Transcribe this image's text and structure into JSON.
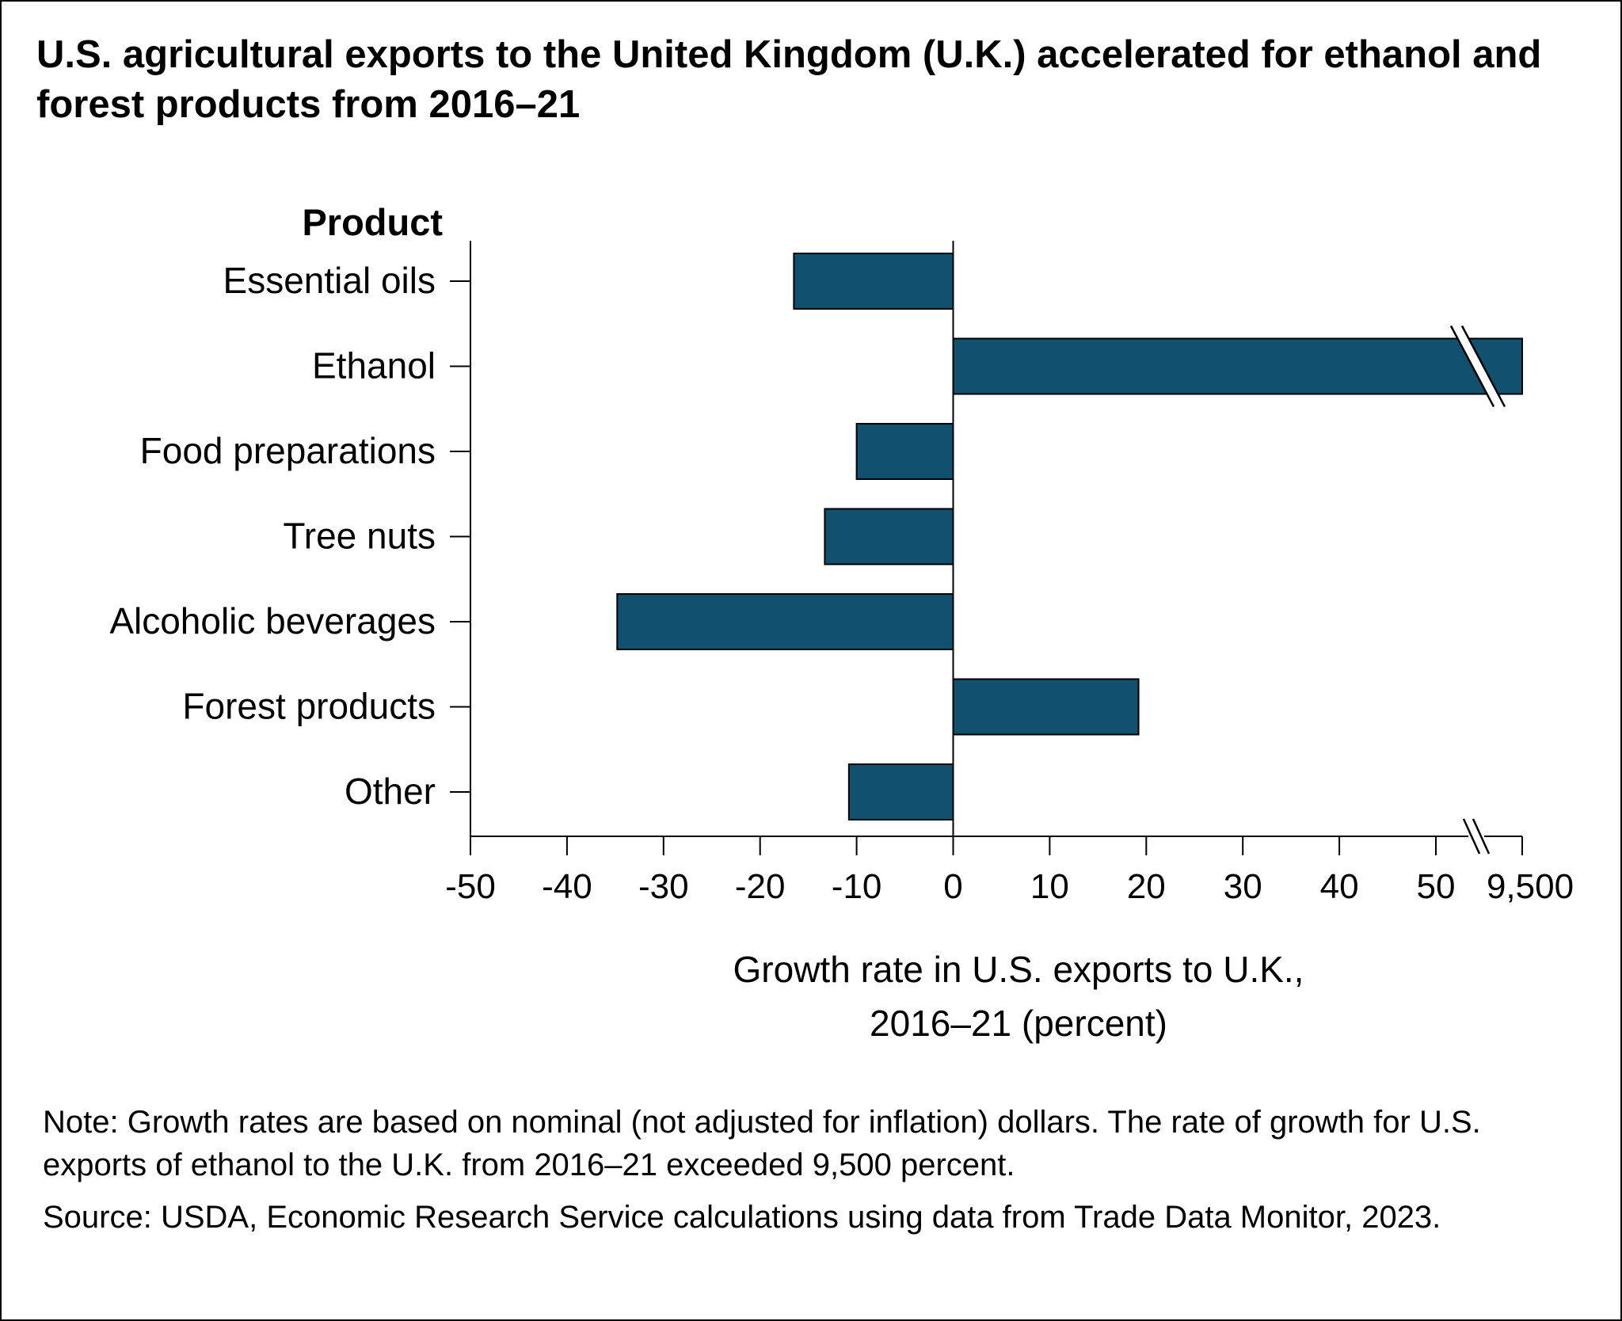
{
  "title": "U.S. agricultural exports to the United Kingdom (U.K.) accelerated for ethanol and forest products from 2016–21",
  "colors": {
    "bar": "#11506e",
    "axis": "#000000",
    "text": "#000000",
    "background": "#ffffff"
  },
  "note": "Note: Growth rates are based on nominal (not adjusted for inflation) dollars. The rate of growth for U.S. exports of ethanol to the U.K. from 2016–21 exceeded 9,500 percent.",
  "source": "Source: USDA, Economic Research Service calculations using data from Trade Data Monitor, 2023.",
  "chart_data": {
    "type": "bar",
    "orientation": "horizontal",
    "y_title": "Product",
    "xlabel_lines": [
      "Growth rate in U.S. exports to U.K.,",
      "2016–21 (percent)"
    ],
    "categories": [
      "Essential oils",
      "Ethanol",
      "Food preparations",
      "Tree nuts",
      "Alcoholic beverages",
      "Forest products",
      "Other"
    ],
    "values": [
      -16.5,
      9500,
      -10,
      -13.3,
      -34.8,
      19.2,
      -10.8
    ],
    "xlim": [
      -50,
      59
    ],
    "x_ticks": [
      -50,
      -40,
      -30,
      -20,
      -10,
      0,
      10,
      20,
      30,
      40,
      50
    ],
    "x_tick_labels": [
      "-50",
      "-40",
      "-30",
      "-20",
      "-10",
      "0",
      "10",
      "20",
      "30",
      "40",
      "50"
    ],
    "axis_break": {
      "after": 50,
      "end_value": 9500,
      "end_label": "9,500"
    },
    "grid": false,
    "legend": "none"
  }
}
